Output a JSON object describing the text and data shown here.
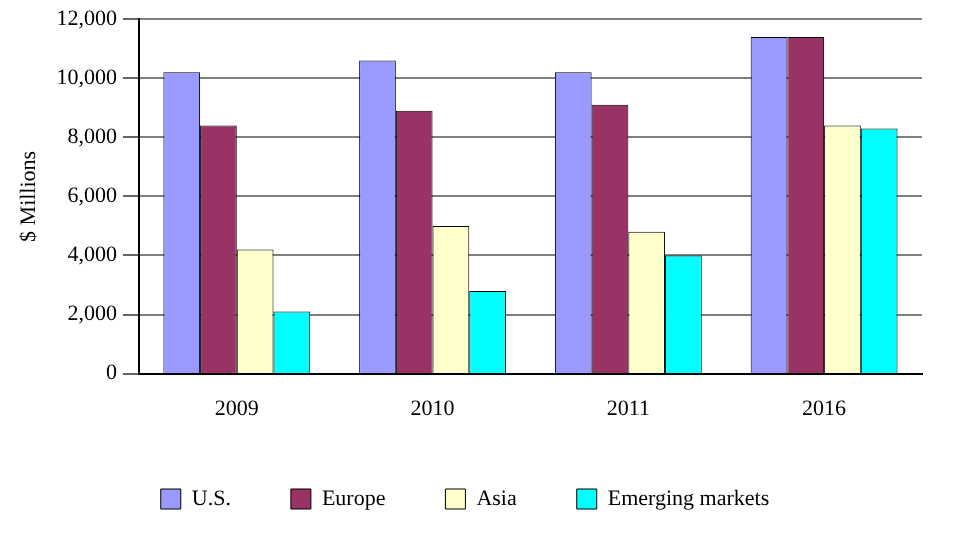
{
  "chart_data": {
    "type": "bar",
    "ylabel": "$ Millions",
    "categories": [
      "2009",
      "2010",
      "2011",
      "2016"
    ],
    "series": [
      {
        "name": "U.S.",
        "color": "#9999ff",
        "values": [
          10200,
          10600,
          10200,
          11400
        ]
      },
      {
        "name": "Europe",
        "color": "#993366",
        "values": [
          8400,
          8900,
          9100,
          11400
        ]
      },
      {
        "name": "Asia",
        "color": "#ffffcc",
        "values": [
          4200,
          5000,
          4800,
          8400
        ]
      },
      {
        "name": "Emerging markets",
        "color": "#00ffff",
        "values": [
          2100,
          2800,
          4000,
          8300
        ]
      }
    ],
    "ylim": [
      0,
      12000
    ],
    "yticks": [
      {
        "value": 0,
        "label": "0"
      },
      {
        "value": 2000,
        "label": "2,000"
      },
      {
        "value": 4000,
        "label": "4,000"
      },
      {
        "value": 6000,
        "label": "6,000"
      },
      {
        "value": 8000,
        "label": "8,000"
      },
      {
        "value": 10000,
        "label": "10,000"
      },
      {
        "value": 12000,
        "label": "12,000"
      }
    ],
    "grid": "y",
    "legend": "bottom"
  }
}
